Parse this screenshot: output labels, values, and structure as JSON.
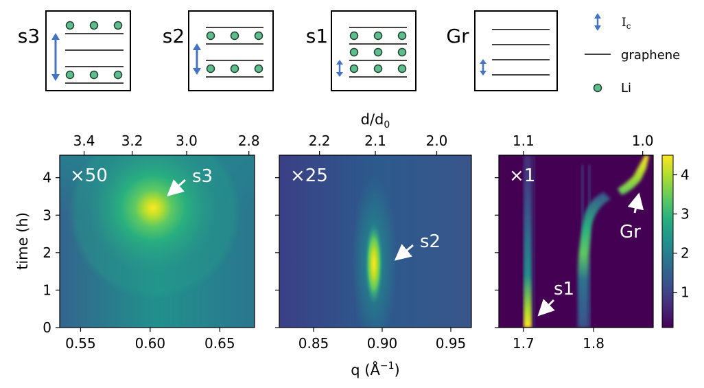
{
  "schematics": [
    {
      "label": "s3",
      "layers": 4,
      "li_rows": 2,
      "ic": "large"
    },
    {
      "label": "s2",
      "layers": 4,
      "li_rows": 2,
      "ic": "medium"
    },
    {
      "label": "s1",
      "layers": 4,
      "li_rows": 3,
      "ic": "small"
    },
    {
      "label": "Gr",
      "layers": 4,
      "li_rows": 0,
      "ic": "small"
    }
  ],
  "legend": {
    "ic_label": "I",
    "ic_sub": "c",
    "graphene_label": "graphene",
    "li_label": "Li"
  },
  "colors": {
    "arrow": "#4472c4",
    "li_fill": "#5ebd8f",
    "li_stroke": "#1f3f2a",
    "viridis_dark": "#440154",
    "viridis_bright": "#fde725"
  },
  "chart_data": [
    {
      "type": "heatmap",
      "panel": "s3",
      "multiplier": "×50",
      "xlim": [
        0.535,
        0.675
      ],
      "xticks": [
        0.55,
        0.6,
        0.65
      ],
      "xtick_labels": [
        "0.55",
        "0.60",
        "0.65"
      ],
      "ylim": [
        0,
        4.6
      ],
      "yticks": [
        0,
        1,
        2,
        3,
        4
      ],
      "ytick_labels": [
        "0",
        "1",
        "2",
        "3",
        "4"
      ],
      "ylabel": "time (h)",
      "top_ticks": [
        3.4,
        3.2,
        3.0,
        2.8
      ],
      "top_tick_labels": [
        "3.4",
        "3.2",
        "3.0",
        "2.8"
      ],
      "peak": {
        "q": 0.606,
        "t": 3.2,
        "label": "s3"
      }
    },
    {
      "type": "heatmap",
      "panel": "s2",
      "multiplier": "×25",
      "xlim": [
        0.825,
        0.965
      ],
      "xticks": [
        0.85,
        0.9,
        0.95
      ],
      "xtick_labels": [
        "0.85",
        "0.90",
        "0.95"
      ],
      "xlabel_main": "q (Å",
      "xlabel_sup": "−1",
      "xlabel_tail": ")",
      "top_ticks": [
        2.2,
        2.1,
        2.0
      ],
      "top_tick_labels": [
        "2.2",
        "2.1",
        "2.0"
      ],
      "top_xlabel_main": "d/d",
      "top_xlabel_sub": "0",
      "peak": {
        "q": 0.895,
        "t": 1.7,
        "label": "s2"
      }
    },
    {
      "type": "heatmap",
      "panel": "s1",
      "multiplier": "×1",
      "xlim": [
        1.665,
        1.885
      ],
      "xticks": [
        1.7,
        1.8
      ],
      "xtick_labels": [
        "1.7",
        "1.8"
      ],
      "top_ticks": [
        1.1,
        1.0
      ],
      "top_tick_labels": [
        "1.1",
        "1.0"
      ],
      "peak_s1": {
        "q": 1.7,
        "t": 0.25,
        "label": "s1"
      },
      "peak_gr": {
        "q": 1.87,
        "t": 4.2,
        "label": "Gr"
      },
      "colorbar": {
        "range": [
          0.1,
          4.5
        ],
        "ticks": [
          1,
          2,
          3,
          4
        ],
        "tick_labels": [
          "1",
          "2",
          "3",
          "4"
        ]
      }
    }
  ]
}
